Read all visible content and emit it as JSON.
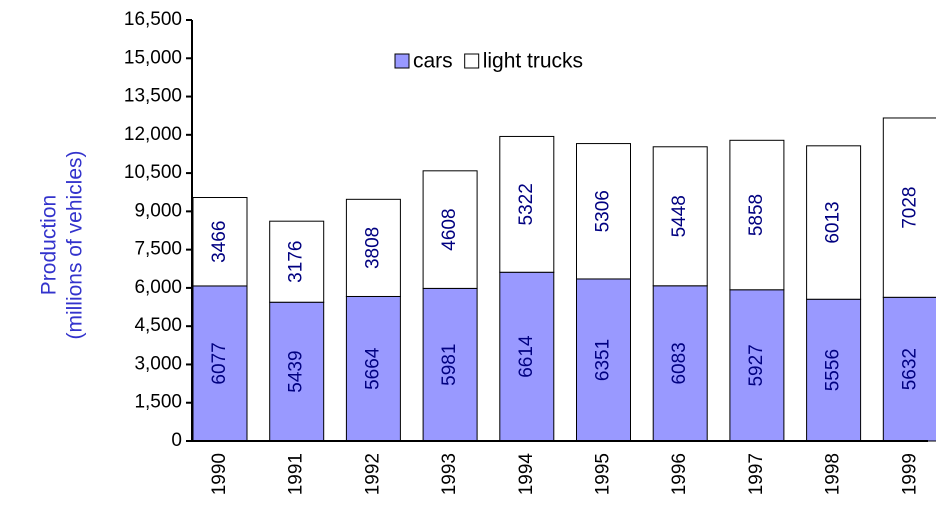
{
  "chart_data": {
    "type": "bar",
    "stacked": true,
    "ylabel": [
      "Production",
      "(millions of vehicles)"
    ],
    "categories": [
      "1990",
      "1991",
      "1992",
      "1993",
      "1994",
      "1995",
      "1996",
      "1997",
      "1998",
      "1999"
    ],
    "series": [
      {
        "name": "cars",
        "color": "#9999ff",
        "values": [
          6077,
          5439,
          5664,
          5981,
          6614,
          6351,
          6083,
          5927,
          5556,
          5632
        ]
      },
      {
        "name": "light trucks",
        "color": "#ffffff",
        "values": [
          3466,
          3176,
          3808,
          4608,
          5322,
          5306,
          5448,
          5858,
          6013,
          7028
        ]
      }
    ],
    "ylim": [
      0,
      16500
    ],
    "yticks": [
      0,
      {
        "value": 1500,
        "label": "1,500"
      },
      {
        "value": 3000,
        "label": "3,000"
      },
      {
        "value": 4500,
        "label": "4,500"
      },
      {
        "value": 6000,
        "label": "6,000"
      },
      {
        "value": 7500,
        "label": "7,500"
      },
      {
        "value": 9000,
        "label": "9,000"
      },
      {
        "value": 10500,
        "label": "10,500"
      },
      {
        "value": 12000,
        "label": "12,000"
      },
      {
        "value": 13500,
        "label": "13,500"
      },
      {
        "value": 15000,
        "label": "15,000"
      },
      {
        "value": 16500,
        "label": "16,500"
      }
    ]
  }
}
